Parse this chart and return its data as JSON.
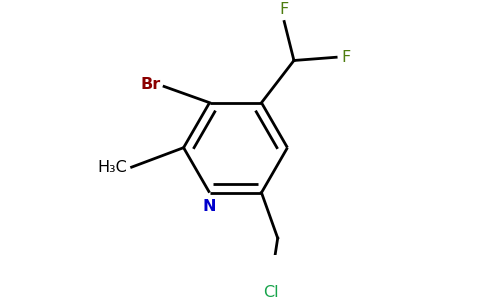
{
  "background_color": "#ffffff",
  "ring_color": "#000000",
  "bond_width": 2.0,
  "atom_colors": {
    "N": "#0000cc",
    "Br": "#8b0000",
    "F": "#4d7c0f",
    "Cl": "#16a34a",
    "C": "#000000"
  },
  "figsize": [
    4.84,
    3.0
  ],
  "dpi": 100
}
